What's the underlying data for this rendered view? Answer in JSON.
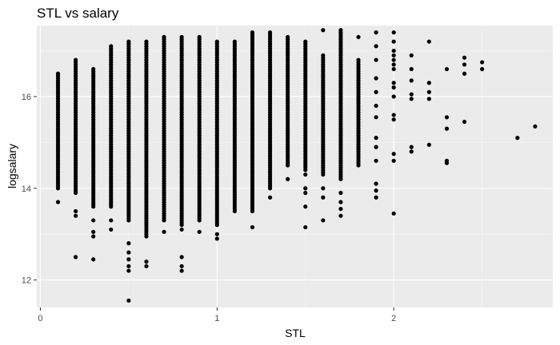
{
  "chart_data": {
    "type": "scatter",
    "title": "STL vs salary",
    "xlabel": "STL",
    "ylabel": "logsalary",
    "xlim": [
      -0.02,
      2.9
    ],
    "ylim": [
      11.4,
      17.55
    ],
    "x_ticks": [
      0,
      1,
      2
    ],
    "x_tick_labels": [
      "0",
      "1",
      "2"
    ],
    "y_ticks": [
      12,
      14,
      16
    ],
    "y_tick_labels": [
      "12",
      "14",
      "16"
    ],
    "grid": true,
    "background": "#ebebeb",
    "point_color": "#000000",
    "columns": [
      {
        "x": 0.1,
        "min": 14.0,
        "max": 16.5,
        "extra": [
          13.7,
          15.8,
          16.5
        ]
      },
      {
        "x": 0.2,
        "min": 13.9,
        "max": 16.8,
        "extra": [
          12.5,
          13.4,
          13.5
        ]
      },
      {
        "x": 0.3,
        "min": 13.6,
        "max": 16.6,
        "extra": [
          12.45,
          12.95,
          13.05,
          13.3
        ]
      },
      {
        "x": 0.4,
        "min": 13.6,
        "max": 17.1,
        "extra": [
          13.1,
          13.3
        ]
      },
      {
        "x": 0.5,
        "min": 13.3,
        "max": 17.2,
        "extra": [
          11.55,
          12.2,
          12.3,
          12.45,
          12.6,
          12.8
        ]
      },
      {
        "x": 0.6,
        "min": 13.0,
        "max": 17.2,
        "extra": [
          12.3,
          12.4,
          12.95
        ]
      },
      {
        "x": 0.7,
        "min": 13.3,
        "max": 17.3,
        "extra": [
          13.05
        ]
      },
      {
        "x": 0.8,
        "min": 13.2,
        "max": 17.3,
        "extra": [
          12.2,
          12.3,
          12.5,
          13.1
        ]
      },
      {
        "x": 0.9,
        "min": 13.3,
        "max": 17.3,
        "extra": [
          13.05
        ]
      },
      {
        "x": 1.0,
        "min": 13.2,
        "max": 17.2,
        "extra": [
          12.9,
          13.0
        ]
      },
      {
        "x": 1.1,
        "min": 13.5,
        "max": 17.2,
        "extra": []
      },
      {
        "x": 1.2,
        "min": 13.5,
        "max": 17.4,
        "extra": [
          13.15
        ]
      },
      {
        "x": 1.3,
        "min": 14.0,
        "max": 17.4,
        "extra": [
          13.8
        ]
      },
      {
        "x": 1.4,
        "min": 14.5,
        "max": 17.3,
        "extra": [
          14.2
        ]
      },
      {
        "x": 1.5,
        "min": 14.4,
        "max": 17.2,
        "extra": [
          13.15,
          13.6,
          13.9,
          14.0,
          14.3
        ]
      },
      {
        "x": 1.6,
        "min": 14.3,
        "max": 16.9,
        "extra": [
          13.3,
          13.8,
          14.0,
          17.45
        ]
      },
      {
        "x": 1.7,
        "min": 14.2,
        "max": 17.45,
        "extra": [
          13.4,
          13.55,
          13.7,
          13.9
        ]
      },
      {
        "x": 1.8,
        "min": 14.5,
        "max": 16.8,
        "extra": [
          17.3
        ]
      }
    ],
    "points": [
      {
        "x": 1.9,
        "y": 17.4
      },
      {
        "x": 1.9,
        "y": 17.1
      },
      {
        "x": 1.9,
        "y": 16.8
      },
      {
        "x": 1.9,
        "y": 16.4
      },
      {
        "x": 1.9,
        "y": 16.1
      },
      {
        "x": 1.9,
        "y": 15.8
      },
      {
        "x": 1.9,
        "y": 15.55
      },
      {
        "x": 1.9,
        "y": 15.1
      },
      {
        "x": 1.9,
        "y": 14.9
      },
      {
        "x": 1.9,
        "y": 14.6
      },
      {
        "x": 1.9,
        "y": 14.1
      },
      {
        "x": 1.9,
        "y": 13.8
      },
      {
        "x": 1.9,
        "y": 13.95
      },
      {
        "x": 2.0,
        "y": 17.4
      },
      {
        "x": 2.0,
        "y": 17.2
      },
      {
        "x": 2.0,
        "y": 17.0
      },
      {
        "x": 2.0,
        "y": 16.9
      },
      {
        "x": 2.0,
        "y": 16.8
      },
      {
        "x": 2.0,
        "y": 16.7
      },
      {
        "x": 2.0,
        "y": 16.6
      },
      {
        "x": 2.0,
        "y": 16.3
      },
      {
        "x": 2.0,
        "y": 16.2
      },
      {
        "x": 2.0,
        "y": 16.0
      },
      {
        "x": 2.0,
        "y": 15.6
      },
      {
        "x": 2.0,
        "y": 15.5
      },
      {
        "x": 2.0,
        "y": 14.75
      },
      {
        "x": 2.0,
        "y": 14.6
      },
      {
        "x": 2.0,
        "y": 13.45
      },
      {
        "x": 2.1,
        "y": 16.9
      },
      {
        "x": 2.1,
        "y": 16.6
      },
      {
        "x": 2.1,
        "y": 16.35
      },
      {
        "x": 2.1,
        "y": 16.05
      },
      {
        "x": 2.1,
        "y": 15.95
      },
      {
        "x": 2.1,
        "y": 14.9
      },
      {
        "x": 2.1,
        "y": 14.8
      },
      {
        "x": 2.2,
        "y": 17.2
      },
      {
        "x": 2.2,
        "y": 16.3
      },
      {
        "x": 2.2,
        "y": 16.1
      },
      {
        "x": 2.2,
        "y": 15.95
      },
      {
        "x": 2.2,
        "y": 14.95
      },
      {
        "x": 2.3,
        "y": 16.6
      },
      {
        "x": 2.3,
        "y": 15.55
      },
      {
        "x": 2.3,
        "y": 15.3
      },
      {
        "x": 2.3,
        "y": 14.6
      },
      {
        "x": 2.3,
        "y": 14.55
      },
      {
        "x": 2.4,
        "y": 16.85
      },
      {
        "x": 2.4,
        "y": 16.7
      },
      {
        "x": 2.4,
        "y": 16.5
      },
      {
        "x": 2.4,
        "y": 15.45
      },
      {
        "x": 2.5,
        "y": 16.75
      },
      {
        "x": 2.5,
        "y": 16.6
      },
      {
        "x": 2.7,
        "y": 15.1
      },
      {
        "x": 2.8,
        "y": 15.35
      }
    ]
  }
}
